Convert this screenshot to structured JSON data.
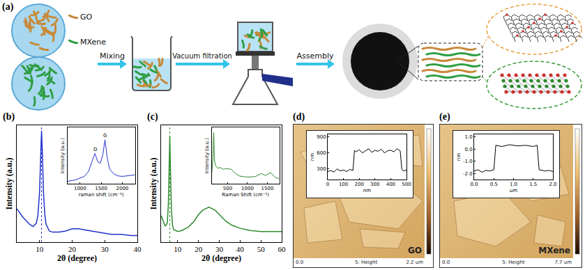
{
  "diagram": {
    "label": "(a)",
    "legend": [
      {
        "text": "GO",
        "color": "#c8893a"
      },
      {
        "text": "MXene",
        "color": "#2f9e44"
      }
    ],
    "steps": [
      "Mixing",
      "Vacuum filtration",
      "Assembly"
    ]
  },
  "chart_data": [
    {
      "label": "(b)",
      "type": "line",
      "color": "#2233cc",
      "x_label": "2θ (degree)",
      "y_label": "Intensity (a.u.)",
      "x": [
        3,
        5,
        7,
        8,
        9,
        9.5,
        10,
        10.3,
        10.6,
        10.9,
        11.2,
        11.6,
        12,
        13,
        14,
        16,
        18,
        20,
        22,
        24,
        26,
        28,
        30,
        32,
        35,
        38,
        40
      ],
      "values": [
        0.3,
        0.22,
        0.16,
        0.14,
        0.17,
        0.24,
        0.45,
        0.75,
        1.0,
        0.78,
        0.45,
        0.25,
        0.16,
        0.1,
        0.09,
        0.09,
        0.1,
        0.12,
        0.12,
        0.11,
        0.1,
        0.09,
        0.08,
        0.07,
        0.07,
        0.06,
        0.06
      ],
      "xlim": [
        3,
        40
      ],
      "xticks": [
        10,
        20,
        30,
        40
      ],
      "ylim": [
        0,
        1.05
      ],
      "reference_x": 10.6,
      "tick_labels": "x",
      "grid": false,
      "inset": {
        "type": "line",
        "color": "#2233cc",
        "x_label": "raman shift (cm⁻¹)",
        "y_label": "Intensity (a.u.)",
        "x": [
          700,
          900,
          1100,
          1200,
          1280,
          1350,
          1420,
          1480,
          1540,
          1590,
          1640,
          1700,
          1800,
          1900,
          2000,
          2100,
          2200,
          2300
        ],
        "values": [
          0.05,
          0.08,
          0.15,
          0.25,
          0.45,
          0.62,
          0.45,
          0.42,
          0.6,
          0.9,
          0.55,
          0.3,
          0.2,
          0.16,
          0.15,
          0.16,
          0.17,
          0.18
        ],
        "xlim": [
          700,
          2300
        ],
        "xticks": [
          1000,
          1500,
          2000
        ],
        "ylim": [
          0,
          1.15
        ],
        "tick_labels": "x",
        "grid": false,
        "peak_labels": [
          {
            "x": 1350,
            "label": "D"
          },
          {
            "x": 1590,
            "label": "G"
          }
        ]
      }
    },
    {
      "label": "(c)",
      "type": "line",
      "color": "#2e8b2e",
      "x_label": "2θ (degree)",
      "y_label": "Intensity (a.u.)",
      "x": [
        2,
        3,
        4,
        5,
        5.5,
        6,
        6.2,
        6.5,
        7,
        7.5,
        8,
        10,
        12,
        15,
        18,
        20,
        22,
        25,
        28,
        30,
        33,
        36,
        40,
        45,
        50,
        55,
        60
      ],
      "values": [
        0.25,
        0.2,
        0.15,
        0.18,
        0.35,
        0.8,
        1.0,
        0.7,
        0.3,
        0.16,
        0.12,
        0.1,
        0.11,
        0.14,
        0.2,
        0.26,
        0.3,
        0.33,
        0.3,
        0.26,
        0.2,
        0.16,
        0.13,
        0.11,
        0.1,
        0.1,
        0.1
      ],
      "xlim": [
        2,
        60
      ],
      "xticks": [
        10,
        20,
        30,
        40,
        50,
        60
      ],
      "ylim": [
        0,
        1.1
      ],
      "reference_x": 6.2,
      "tick_labels": "x",
      "grid": false,
      "inset": {
        "type": "line",
        "color": "#2e8b2e",
        "x_label": "Raman Shift (cm⁻¹)",
        "y_label": "Intensity (a.u.)",
        "x": [
          100,
          130,
          150,
          170,
          200,
          260,
          300,
          400,
          450,
          600,
          700,
          800,
          1000,
          1200,
          1350,
          1450,
          1580,
          1700,
          1800
        ],
        "values": [
          0.2,
          0.5,
          1.0,
          0.45,
          0.35,
          0.3,
          0.32,
          0.28,
          0.3,
          0.28,
          0.2,
          0.15,
          0.13,
          0.14,
          0.2,
          0.16,
          0.22,
          0.12,
          0.1
        ],
        "xlim": [
          100,
          1800
        ],
        "xticks": [
          500,
          1000,
          1500
        ],
        "ylim": [
          0,
          1.1
        ],
        "tick_labels": "x",
        "grid": false
      }
    }
  ],
  "images": [
    {
      "label": "(d)",
      "caption": "GO",
      "scale_texts": [
        "0.0",
        "5: Height",
        "2.2 um"
      ],
      "profile": {
        "type": "line",
        "color": "#000000",
        "x_label": "nm",
        "y_label": "nm",
        "x": [
          0,
          20,
          40,
          60,
          80,
          100,
          120,
          140,
          160,
          170,
          180,
          200,
          220,
          240,
          260,
          280,
          300,
          320,
          340,
          360,
          380,
          400,
          420,
          440,
          460,
          470,
          480,
          500
        ],
        "values": [
          250,
          270,
          240,
          300,
          260,
          280,
          250,
          290,
          270,
          650,
          620,
          660,
          600,
          640,
          680,
          610,
          650,
          630,
          670,
          600,
          640,
          650,
          620,
          680,
          640,
          300,
          260,
          280
        ],
        "xlim": [
          0,
          500
        ],
        "xticks": [
          0,
          100,
          200,
          300,
          400,
          500
        ],
        "ylim": [
          100,
          950
        ],
        "yticks": [
          300,
          600,
          900
        ],
        "grid": false
      }
    },
    {
      "label": "(e)",
      "caption": "MXene",
      "scale_texts": [
        "0.0",
        "5: Height",
        "7.7 um"
      ],
      "profile": {
        "type": "line",
        "color": "#000000",
        "x_label": "um",
        "y_label": "nm",
        "x": [
          0,
          0.1,
          0.2,
          0.3,
          0.4,
          0.5,
          0.55,
          0.7,
          0.9,
          1.1,
          1.3,
          1.5,
          1.6,
          1.65,
          1.8,
          1.9,
          2.0
        ],
        "values": [
          -1.8,
          -1.7,
          -1.9,
          -1.75,
          -1.8,
          -1.7,
          0.3,
          0.2,
          0.35,
          0.25,
          0.3,
          0.2,
          0.3,
          -1.7,
          -1.8,
          -1.75,
          -1.85
        ],
        "xlim": [
          0,
          2
        ],
        "xticks": [
          {
            "value": 0,
            "label": "0.0"
          },
          0.5,
          {
            "value": 1,
            "label": "1.0"
          },
          1.5,
          {
            "value": 2,
            "label": "2.0"
          }
        ],
        "ylim": [
          -2.5,
          1.2
        ],
        "yticks": [
          {
            "value": 1,
            "label": "1.0"
          },
          {
            "value": 0,
            "label": "0.0"
          },
          {
            "value": -1,
            "label": "-1.0"
          },
          {
            "value": -2,
            "label": "-2.0"
          }
        ],
        "grid": false
      }
    }
  ]
}
